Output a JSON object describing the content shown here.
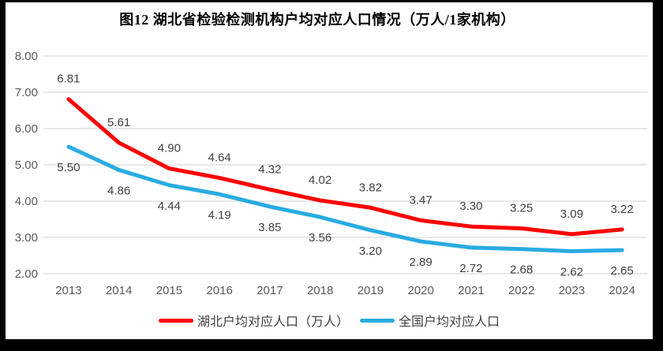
{
  "title": "图12 湖北省检验检测机构户均对应人口情况（万人/1家机构）",
  "colors": {
    "frame": "#000000",
    "background": "#ffffff",
    "gridline": "#d9d9d9",
    "axis_label": "#595959",
    "data_label": "#404040",
    "title": "#000000"
  },
  "chart_data": {
    "type": "line",
    "title": "图12 湖北省检验检测机构户均对应人口情况（万人/1家机构）",
    "categories": [
      "2013",
      "2014",
      "2015",
      "2016",
      "2017",
      "2018",
      "2019",
      "2020",
      "2021",
      "2022",
      "2023",
      "2024"
    ],
    "series": [
      {
        "name": "湖北户均对应人口（万人）",
        "color": "#ff0000",
        "label_position": "above",
        "values": [
          6.81,
          5.61,
          4.9,
          4.64,
          4.32,
          4.02,
          3.82,
          3.47,
          3.3,
          3.25,
          3.09,
          3.22
        ]
      },
      {
        "name": "全国户均对应人口",
        "color": "#29abe2",
        "label_position": "below",
        "values": [
          5.5,
          4.86,
          4.44,
          4.19,
          3.85,
          3.56,
          3.2,
          2.89,
          2.72,
          2.68,
          2.62,
          2.65
        ]
      }
    ],
    "ylim": [
      2.0,
      8.0
    ],
    "yticks": [
      "8.00",
      "7.00",
      "6.00",
      "5.00",
      "4.00",
      "3.00",
      "2.00"
    ],
    "xlabel": "",
    "ylabel": "",
    "grid": true,
    "legend_position": "bottom",
    "data_label_decimals": 2
  }
}
